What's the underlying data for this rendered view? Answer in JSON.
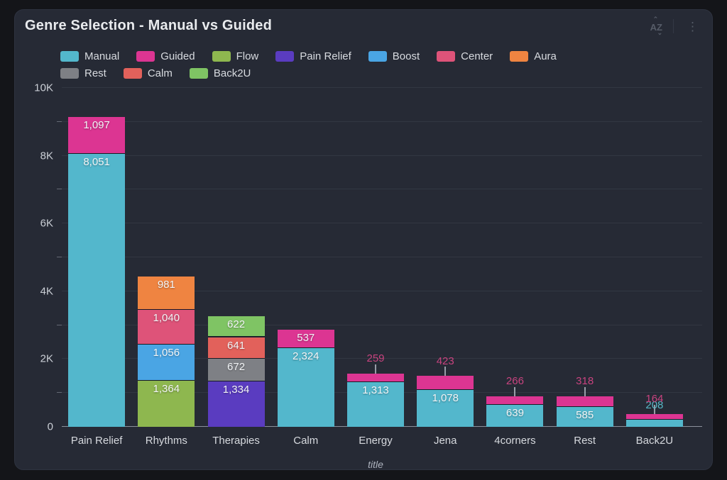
{
  "panel": {
    "header": {
      "sort_icon_label": "AZ",
      "menu_icon": "kebab"
    }
  },
  "chart_data": {
    "type": "bar",
    "stacked": true,
    "title": "Genre Selection - Manual vs Guided",
    "xlabel": "title",
    "ylabel": "",
    "legend_position": "top",
    "grid": true,
    "y_axis": {
      "max": 10000,
      "grid_step": 1000,
      "major_ticks": [
        {
          "value": 0,
          "label": "0"
        },
        {
          "value": 2000,
          "label": "2K"
        },
        {
          "value": 4000,
          "label": "4K"
        },
        {
          "value": 6000,
          "label": "6K"
        },
        {
          "value": 8000,
          "label": "8K"
        },
        {
          "value": 10000,
          "label": "10K"
        }
      ],
      "minor_ticks": [
        1000,
        3000,
        5000,
        7000,
        9000
      ]
    },
    "series_colors": {
      "Manual": "#53B7CC",
      "Guided": "#DC3592",
      "Flow": "#8EB74F",
      "Pain Relief": "#5A3CC0",
      "Boost": "#4AA5E4",
      "Center": "#DE5379",
      "Aura": "#EF8441",
      "Rest": "#7E8085",
      "Calm": "#E2615B",
      "Back2U": "#7FC464"
    },
    "outside_label_colors": {
      "Manual": "#57B8C6",
      "Guided": "#C8437F"
    },
    "legend": [
      {
        "name": "Manual",
        "row": 1
      },
      {
        "name": "Guided",
        "row": 1
      },
      {
        "name": "Flow",
        "row": 1
      },
      {
        "name": "Pain Relief",
        "row": 1
      },
      {
        "name": "Boost",
        "row": 1
      },
      {
        "name": "Center",
        "row": 1
      },
      {
        "name": "Aura",
        "row": 1
      },
      {
        "name": "Rest",
        "row": 2
      },
      {
        "name": "Calm",
        "row": 2
      },
      {
        "name": "Back2U",
        "row": 2
      }
    ],
    "categories": [
      "Pain Relief",
      "Rhythms",
      "Therapies",
      "Calm",
      "Energy",
      "Jena",
      "4corners",
      "Rest",
      "Back2U"
    ],
    "bars": [
      {
        "category": "Pain Relief",
        "segments": [
          {
            "series": "Manual",
            "value": 8051,
            "label": "8,051",
            "label_pos": "inside"
          },
          {
            "series": "Guided",
            "value": 1097,
            "label": "1,097",
            "label_pos": "inside"
          }
        ]
      },
      {
        "category": "Rhythms",
        "segments": [
          {
            "series": "Flow",
            "value": 1364,
            "label": "1,364",
            "label_pos": "inside"
          },
          {
            "series": "Boost",
            "value": 1056,
            "label": "1,056",
            "label_pos": "inside"
          },
          {
            "series": "Center",
            "value": 1040,
            "label": "1,040",
            "label_pos": "inside"
          },
          {
            "series": "Aura",
            "value": 981,
            "label": "981",
            "label_pos": "inside"
          }
        ]
      },
      {
        "category": "Therapies",
        "segments": [
          {
            "series": "Pain Relief",
            "value": 1334,
            "label": "1,334",
            "label_pos": "inside"
          },
          {
            "series": "Rest",
            "value": 672,
            "label": "672",
            "label_pos": "inside"
          },
          {
            "series": "Calm",
            "value": 641,
            "label": "641",
            "label_pos": "inside"
          },
          {
            "series": "Back2U",
            "value": 622,
            "label": "622",
            "label_pos": "inside"
          }
        ]
      },
      {
        "category": "Calm",
        "segments": [
          {
            "series": "Manual",
            "value": 2324,
            "label": "2,324",
            "label_pos": "inside"
          },
          {
            "series": "Guided",
            "value": 537,
            "label": "537",
            "label_pos": "inside"
          }
        ]
      },
      {
        "category": "Energy",
        "segments": [
          {
            "series": "Manual",
            "value": 1313,
            "label": "1,313",
            "label_pos": "inside"
          },
          {
            "series": "Guided",
            "value": 259,
            "label": "259",
            "label_pos": "outside"
          }
        ]
      },
      {
        "category": "Jena",
        "segments": [
          {
            "series": "Manual",
            "value": 1078,
            "label": "1,078",
            "label_pos": "inside"
          },
          {
            "series": "Guided",
            "value": 423,
            "label": "423",
            "label_pos": "outside"
          }
        ]
      },
      {
        "category": "4corners",
        "segments": [
          {
            "series": "Manual",
            "value": 639,
            "label": "639",
            "label_pos": "inside"
          },
          {
            "series": "Guided",
            "value": 266,
            "label": "266",
            "label_pos": "outside"
          }
        ]
      },
      {
        "category": "Rest",
        "segments": [
          {
            "series": "Manual",
            "value": 585,
            "label": "585",
            "label_pos": "inside"
          },
          {
            "series": "Guided",
            "value": 318,
            "label": "318",
            "label_pos": "outside"
          }
        ]
      },
      {
        "category": "Back2U",
        "segments": [
          {
            "series": "Manual",
            "value": 208,
            "label": "208",
            "label_pos": "outside"
          },
          {
            "series": "Guided",
            "value": 164,
            "label": "164",
            "label_pos": "outside"
          }
        ]
      }
    ]
  }
}
